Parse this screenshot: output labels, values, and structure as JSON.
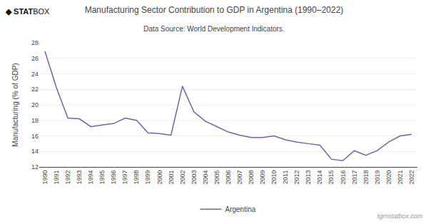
{
  "chart_data": {
    "type": "line",
    "title": "Manufacturing Sector Contribution to GDP in Argentina (1990–2022)",
    "subtitle": "Data Source: World Development Indicators.",
    "ylabel": "Manufacturing (% of GDP)",
    "x": [
      1990,
      1991,
      1992,
      1993,
      1994,
      1995,
      1996,
      1997,
      1998,
      1999,
      2000,
      2001,
      2002,
      2003,
      2004,
      2005,
      2006,
      2007,
      2008,
      2009,
      2010,
      2011,
      2012,
      2013,
      2014,
      2015,
      2016,
      2017,
      2018,
      2019,
      2020,
      2021,
      2022
    ],
    "series": [
      {
        "name": "Argentina",
        "color": "#7B5EA7",
        "values": [
          26.9,
          22.2,
          18.3,
          18.2,
          17.2,
          17.4,
          17.6,
          18.3,
          18.0,
          16.4,
          16.3,
          16.1,
          22.4,
          19.1,
          17.9,
          17.2,
          16.5,
          16.1,
          15.8,
          15.8,
          16.0,
          15.5,
          15.2,
          15.0,
          14.8,
          13.0,
          12.8,
          14.1,
          13.5,
          14.1,
          15.2,
          16.0,
          16.2
        ]
      }
    ],
    "xlim": [
      1989.5,
      2022.5
    ],
    "xticks": [
      1990,
      1991,
      1992,
      1993,
      1994,
      1995,
      1996,
      1997,
      1998,
      1999,
      2000,
      2001,
      2002,
      2003,
      2004,
      2005,
      2006,
      2007,
      2008,
      2009,
      2010,
      2011,
      2012,
      2013,
      2014,
      2015,
      2016,
      2017,
      2018,
      2019,
      2020,
      2021,
      2022
    ],
    "ylim": [
      12,
      28
    ],
    "yticks": [
      12,
      14,
      16,
      18,
      20,
      22,
      24,
      26,
      28
    ],
    "grid": "y",
    "legend": "bottom",
    "annotations": [
      "◆",
      "STAT",
      "BOX",
      "tgmstatbox.com"
    ]
  }
}
